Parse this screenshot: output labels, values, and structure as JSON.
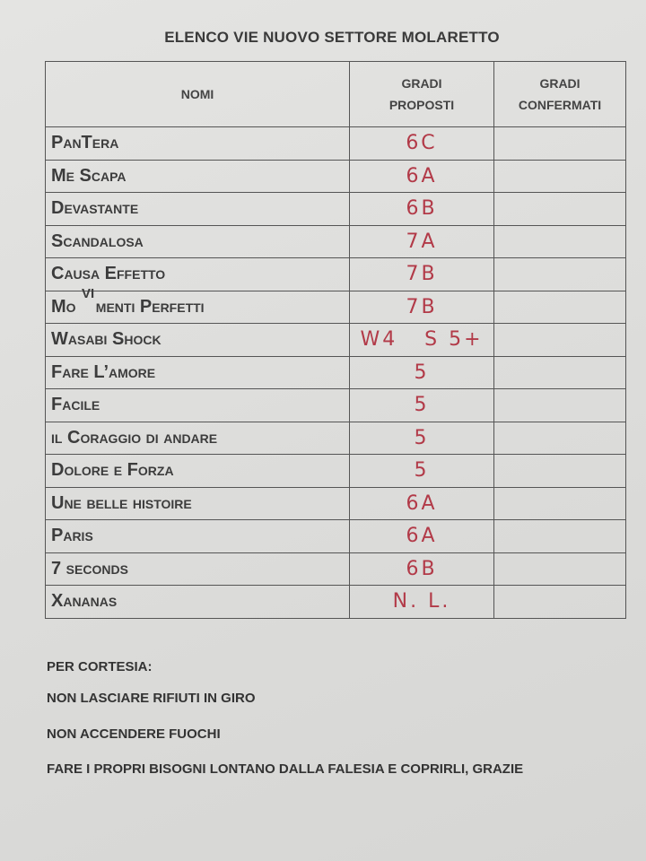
{
  "title": "ELENCO VIE NUOVO SETTORE MOLARETTO",
  "table": {
    "headers": {
      "names": "NOMI",
      "proposed_1": "GRADI",
      "proposed_2": "PROPOSTI",
      "confirmed_1": "GRADI",
      "confirmed_2": "CONFERMATI"
    },
    "rows": [
      {
        "name": "PanTera",
        "grade": "6C",
        "confirmed": ""
      },
      {
        "name": "Me Scapa",
        "grade": "6A",
        "confirmed": ""
      },
      {
        "name": "Devastante",
        "grade": "6B",
        "confirmed": ""
      },
      {
        "name": "Scandalosa",
        "grade": "7A",
        "confirmed": ""
      },
      {
        "name": "Causa Effetto",
        "grade": "7B",
        "confirmed": ""
      },
      {
        "name": "Mo    menti Perfetti",
        "superscript": "VI",
        "grade": "7B",
        "confirmed": ""
      },
      {
        "name": "Wasabi Shock",
        "grade": "W4   S 5+",
        "confirmed": ""
      },
      {
        "name": "Fare L’amore",
        "grade": "5",
        "confirmed": ""
      },
      {
        "name": "Facile",
        "grade": "5",
        "confirmed": ""
      },
      {
        "name": "il Coraggio di andare",
        "grade": "5",
        "confirmed": ""
      },
      {
        "name": "Dolore e Forza",
        "grade": "5",
        "confirmed": ""
      },
      {
        "name": "Une belle histoire",
        "grade": "6A",
        "confirmed": ""
      },
      {
        "name": "Paris",
        "grade": "6A",
        "confirmed": ""
      },
      {
        "name": "7 seconds",
        "grade": "6B",
        "confirmed": ""
      },
      {
        "name": "Xananas",
        "grade": "N. L.",
        "confirmed": ""
      }
    ]
  },
  "footer": [
    "PER CORTESIA:",
    "NON LASCIARE RIFIUTI IN GIRO",
    "NON ACCENDERE FUOCHI",
    "FARE I PROPRI BISOGNI LONTANO DALLA FALESIA E COPRIRLI, GRAZIE"
  ],
  "colors": {
    "handwriting": "#b23a48",
    "paper": "#e0e0de",
    "ink": "#3c3c3c"
  }
}
